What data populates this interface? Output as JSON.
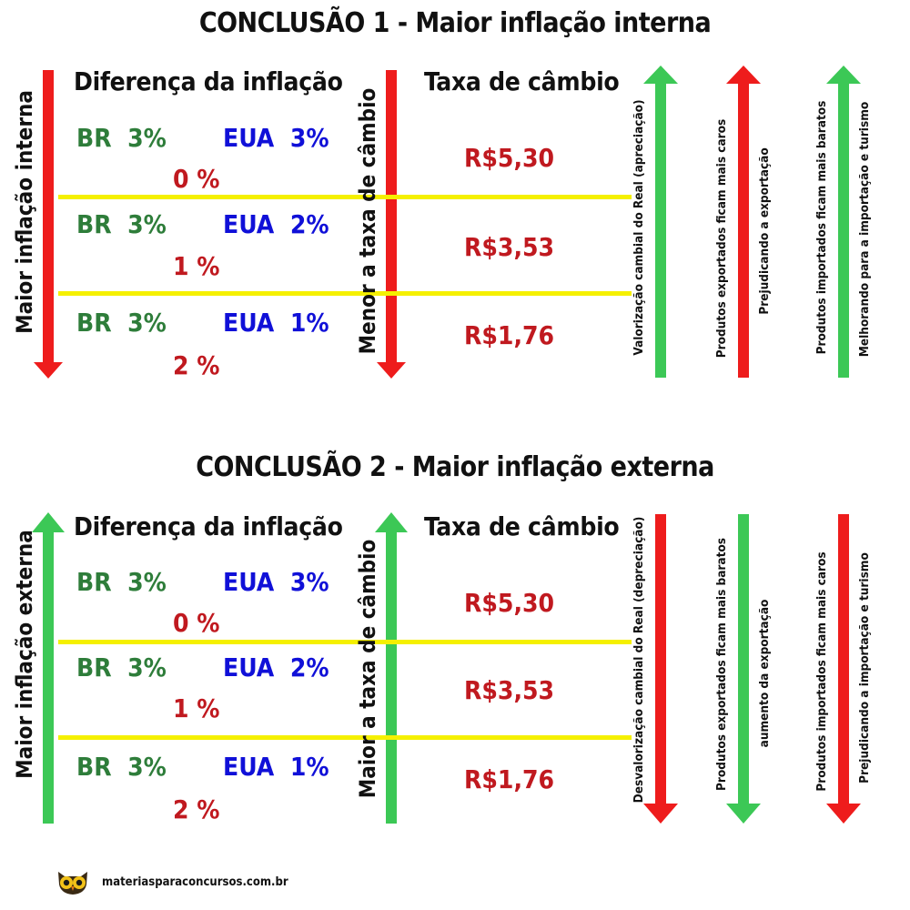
{
  "section1": {
    "title": "CONCLUSÃO 1 - Maior inflação interna",
    "header_diff": "Diferença da inflação",
    "header_rate": "Taxa de câmbio",
    "left_axis": "Maior inflação interna",
    "mid_axis": "Menor a taxa de câmbio",
    "rows": [
      {
        "br": "BR",
        "br_rate": "3%",
        "eua": "EUA",
        "eua_rate": "3%",
        "diff": "0 %",
        "exchange": "R$5,30"
      },
      {
        "br": "BR",
        "br_rate": "3%",
        "eua": "EUA",
        "eua_rate": "2%",
        "diff": "1 %",
        "exchange": "R$3,53"
      },
      {
        "br": "BR",
        "br_rate": "3%",
        "eua": "EUA",
        "eua_rate": "1%",
        "diff": "2 %",
        "exchange": "R$1,76"
      }
    ],
    "effects": [
      "Valorização cambial do Real (apreciação)",
      "Produtos exportados ficam mais caros",
      "Prejudicando a exportação",
      "Produtos importados  ficam mais baratos",
      "Melhorando para a importação e turismo"
    ]
  },
  "section2": {
    "title": "CONCLUSÃO 2 - Maior inflação externa",
    "header_diff": "Diferença da inflação",
    "header_rate": "Taxa de câmbio",
    "left_axis": "Maior inflação externa",
    "mid_axis": "Maior a taxa de câmbio",
    "rows": [
      {
        "br": "BR",
        "br_rate": "3%",
        "eua": "EUA",
        "eua_rate": "3%",
        "diff": "0 %",
        "exchange": "R$5,30"
      },
      {
        "br": "BR",
        "br_rate": "3%",
        "eua": "EUA",
        "eua_rate": "2%",
        "diff": "1 %",
        "exchange": "R$3,53"
      },
      {
        "br": "BR",
        "br_rate": "3%",
        "eua": "EUA",
        "eua_rate": "1%",
        "diff": "2 %",
        "exchange": "R$1,76"
      }
    ],
    "effects": [
      "Desvalorização cambial do Real (depreciação)",
      "Produtos exportados ficam mais baratos",
      "aumento da exportação",
      "Produtos importados  ficam mais caros",
      "Prejudicando a importação e turismo"
    ]
  },
  "footer": {
    "site": "materiasparaconcursos.com.br",
    "logo_icon": "owl-icon"
  },
  "colors": {
    "red": "#ee1c1c",
    "green": "#3cc856",
    "yellow": "#f5f000",
    "br_green": "#2e7d3a",
    "eua_blue": "#1010d8",
    "value_red": "#c0191f"
  }
}
